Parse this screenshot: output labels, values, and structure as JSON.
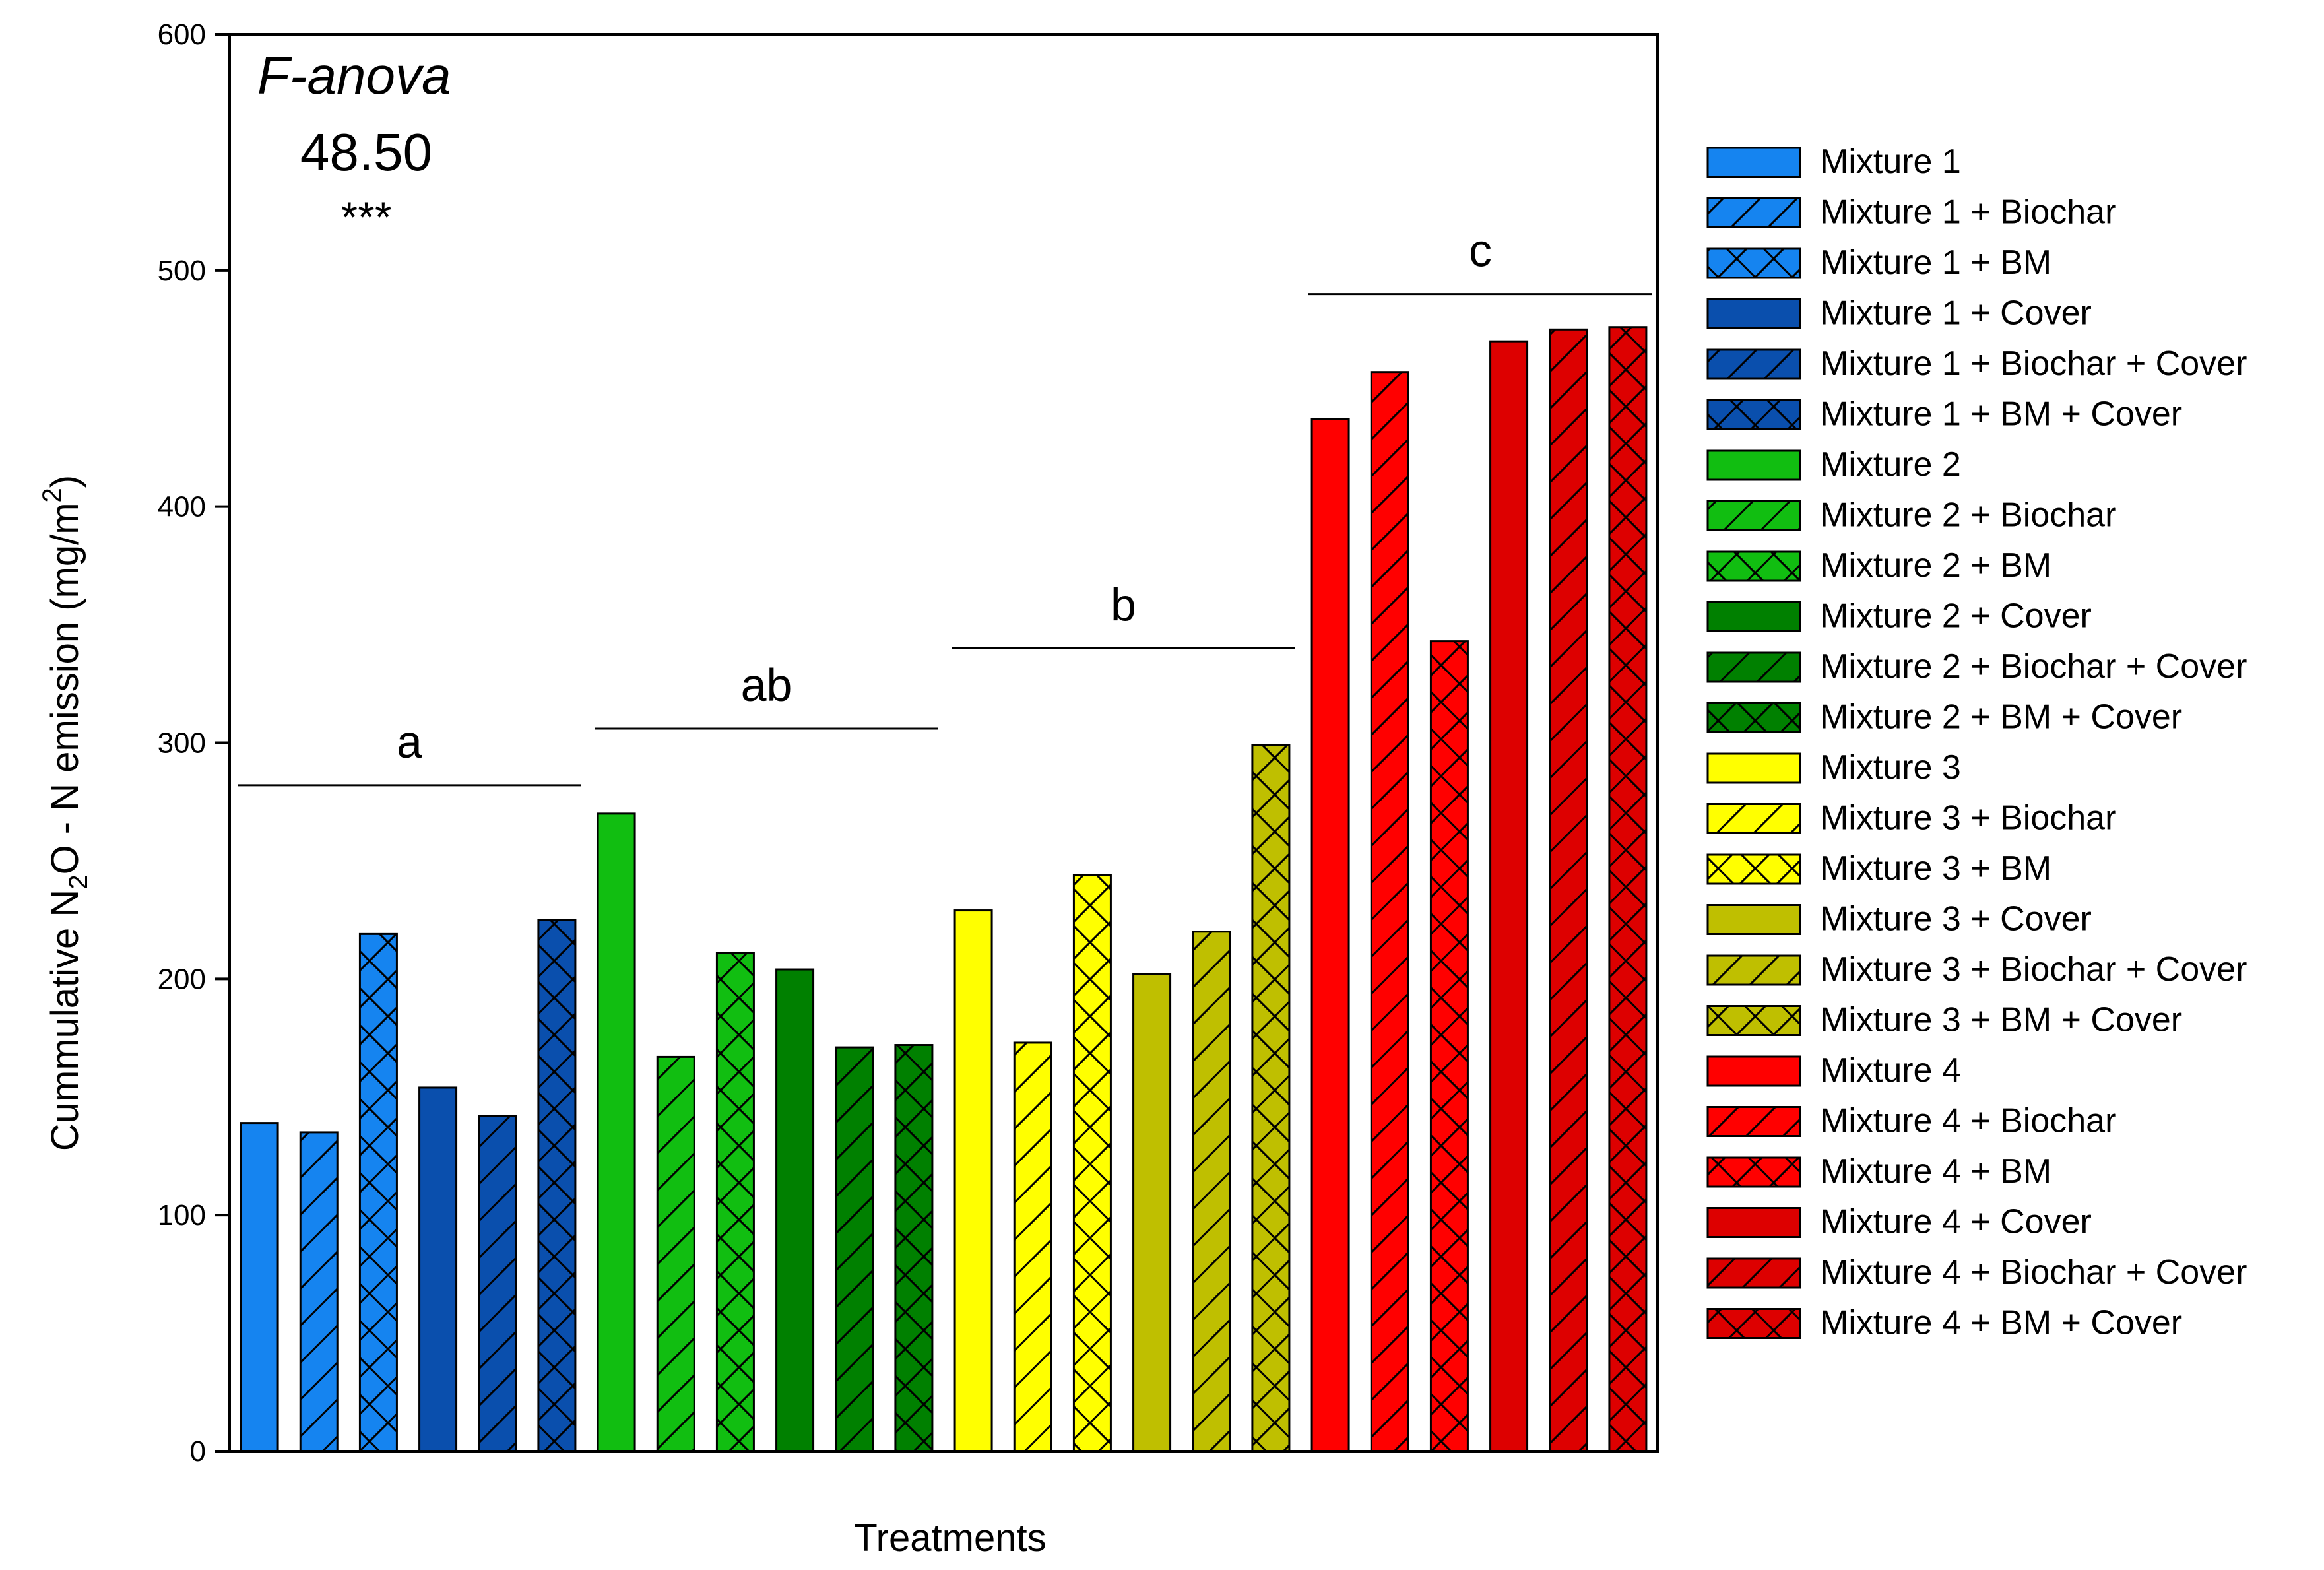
{
  "chart_data": {
    "type": "bar",
    "title": "",
    "xlabel": "Treatments",
    "ylabel": "Cummulative N2O - N emission (mg/m2)",
    "ylabel_parts": {
      "pre": "Cummulative N",
      "sub1": "2",
      "mid": "O - N emission (mg/m",
      "sup": "2",
      "post": ")"
    },
    "ylim": [
      0,
      600
    ],
    "yticks": [
      "0",
      "100",
      "200",
      "300",
      "400",
      "500",
      "600"
    ],
    "grid": false,
    "legend_position": "right",
    "categories": [
      "Mixture 1",
      "Mixture 1 + Biochar",
      "Mixture 1 + BM",
      "Mixture 1 + Cover",
      "Mixture 1 + Biochar + Cover",
      "Mixture 1 + BM + Cover",
      "Mixture 2",
      "Mixture 2 + Biochar",
      "Mixture 2 + BM",
      "Mixture 2 + Cover",
      "Mixture 2 + Biochar + Cover",
      "Mixture 2 + BM + Cover",
      "Mixture 3",
      "Mixture 3 + Biochar",
      "Mixture 3 + BM",
      "Mixture 3 + Cover",
      "Mixture 3 + Biochar + Cover",
      "Mixture 3 + BM + Cover",
      "Mixture 4",
      "Mixture 4 + Biochar",
      "Mixture 4 + BM",
      "Mixture 4 + Cover",
      "Mixture 4 + Biochar + Cover",
      "Mixture 4 + BM + Cover"
    ],
    "values": [
      139,
      135,
      219,
      154,
      142,
      225,
      270,
      167,
      211,
      204,
      171,
      172,
      229,
      173,
      244,
      202,
      220,
      299,
      437,
      457,
      343,
      470,
      475,
      476
    ],
    "colors": [
      "#1584F0",
      "#1584F0",
      "#1584F0",
      "#0A4FAD",
      "#0A4FAD",
      "#0A4FAD",
      "#11BE11",
      "#11BE11",
      "#11BE11",
      "#008000",
      "#008000",
      "#008000",
      "#FFFF00",
      "#FFFF00",
      "#FFFF00",
      "#BFBF00",
      "#BFBF00",
      "#BFBF00",
      "#FF0000",
      "#FF0000",
      "#FF0000",
      "#DD0000",
      "#DD0000",
      "#DD0000"
    ],
    "patterns": [
      "solid",
      "diagonal",
      "cross",
      "solid",
      "diagonal",
      "cross",
      "solid",
      "diagonal",
      "cross",
      "solid",
      "diagonal",
      "cross",
      "solid",
      "diagonal",
      "cross",
      "solid",
      "diagonal",
      "cross",
      "solid",
      "diagonal",
      "cross",
      "solid",
      "diagonal",
      "cross"
    ],
    "groups": [
      {
        "letter": "a",
        "line_y": 282,
        "from": 0,
        "to": 5
      },
      {
        "letter": "ab",
        "line_y": 306,
        "from": 6,
        "to": 11
      },
      {
        "letter": "b",
        "line_y": 340,
        "from": 12,
        "to": 17
      },
      {
        "letter": "c",
        "line_y": 490,
        "from": 18,
        "to": 23
      }
    ],
    "annotation": {
      "label": "F-anova",
      "value": "48.50",
      "significance": "***"
    }
  }
}
